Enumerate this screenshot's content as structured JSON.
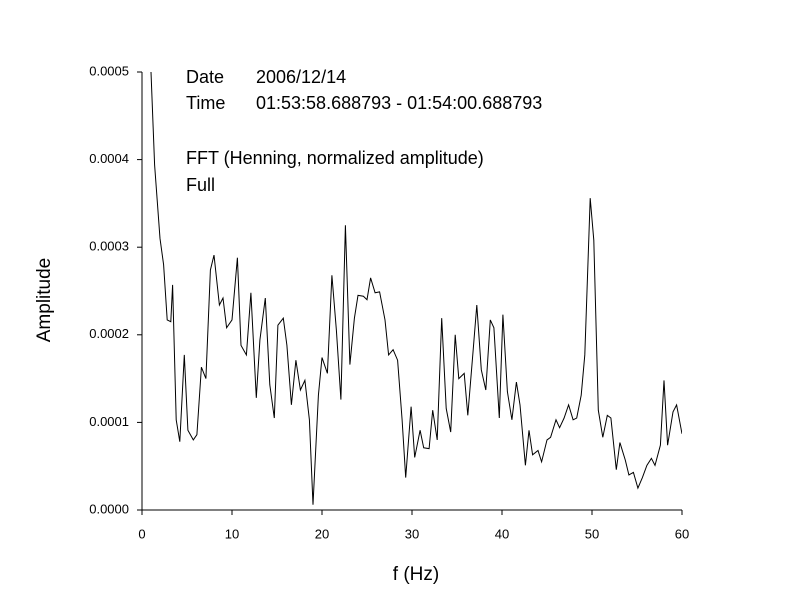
{
  "chart_data": {
    "type": "line",
    "xlabel": "f (Hz)",
    "ylabel": "Amplitude",
    "annotations": [
      "Date",
      "2006/12/14",
      "Time",
      "01:53:58.688793 - 01:54:00.688793",
      "FFT (Henning, normalized amplitude)",
      "Full"
    ],
    "xlim": [
      0,
      60
    ],
    "xticks": [
      0,
      10,
      20,
      30,
      40,
      50,
      60
    ],
    "ylim": [
      0,
      0.0005
    ],
    "yticks": [
      {
        "value": 0,
        "label": "0.0000"
      },
      {
        "value": 0.0001,
        "label": "0.0001"
      },
      {
        "value": 0.0002,
        "label": "0.0002"
      },
      {
        "value": 0.0003,
        "label": "0.0003"
      },
      {
        "value": 0.0004,
        "label": "0.0004"
      },
      {
        "value": 0.0005,
        "label": "0.0005"
      }
    ],
    "grid": false,
    "series": [
      {
        "color": "#000000",
        "x": [
          1.0,
          1.4,
          2.0,
          2.4,
          2.8,
          3.2,
          3.4,
          3.8,
          4.2,
          4.7,
          5.1,
          5.7,
          6.1,
          6.6,
          7.1,
          7.6,
          8.0,
          8.6,
          9.0,
          9.4,
          10.0,
          10.6,
          11.0,
          11.6,
          12.1,
          12.7,
          13.1,
          13.7,
          14.2,
          14.7,
          15.1,
          15.7,
          16.1,
          16.6,
          17.1,
          17.6,
          18.1,
          18.6,
          19.0,
          19.6,
          20.0,
          20.6,
          21.1,
          21.6,
          22.1,
          22.6,
          23.1,
          23.6,
          24.0,
          24.6,
          25.0,
          25.4,
          25.9,
          26.4,
          27.0,
          27.4,
          27.9,
          28.4,
          28.9,
          29.3,
          29.9,
          30.3,
          30.9,
          31.3,
          31.9,
          32.3,
          32.8,
          33.3,
          33.8,
          34.3,
          34.8,
          35.2,
          35.8,
          36.2,
          36.8,
          37.2,
          37.7,
          38.2,
          38.7,
          39.1,
          39.7,
          40.1,
          40.6,
          41.1,
          41.6,
          42.0,
          42.6,
          43.0,
          43.4,
          44.0,
          44.4,
          45.0,
          45.4,
          46.0,
          46.4,
          46.9,
          47.4,
          47.9,
          48.3,
          48.8,
          49.2,
          49.8,
          50.2,
          50.7,
          51.2,
          51.7,
          52.1,
          52.7,
          53.1,
          53.7,
          54.1,
          54.6,
          55.1,
          55.6,
          56.1,
          56.6,
          57.0,
          57.6,
          58.0,
          58.4,
          59.0,
          59.4,
          60.0
        ],
        "values": [
          0.0005,
          0.000394,
          0.00031,
          0.00028,
          0.000217,
          0.000215,
          0.000257,
          0.000103,
          7.8e-05,
          0.000177,
          9.1e-05,
          8e-05,
          8.6e-05,
          0.000163,
          0.00015,
          0.000274,
          0.000291,
          0.000234,
          0.000242,
          0.000208,
          0.000217,
          0.000288,
          0.000188,
          0.000177,
          0.000248,
          0.000128,
          0.000194,
          0.000242,
          0.000143,
          0.000105,
          0.000211,
          0.000219,
          0.000188,
          0.00012,
          0.000171,
          0.000137,
          0.000148,
          0.000103,
          6e-06,
          0.000131,
          0.000174,
          0.000156,
          0.000268,
          0.000205,
          0.000126,
          0.000325,
          0.000166,
          0.000219,
          0.000245,
          0.000244,
          0.00024,
          0.000265,
          0.000248,
          0.000249,
          0.000217,
          0.000177,
          0.000183,
          0.000171,
          0.000103,
          3.7e-05,
          0.000118,
          6e-05,
          9.1e-05,
          7.1e-05,
          7e-05,
          0.000114,
          8e-05,
          0.000219,
          0.000116,
          8.9e-05,
          0.0002,
          0.00015,
          0.000156,
          0.000108,
          0.000183,
          0.000234,
          0.00016,
          0.000137,
          0.000217,
          0.000208,
          0.000105,
          0.000223,
          0.000135,
          0.000103,
          0.000146,
          0.00012,
          5.1e-05,
          9.1e-05,
          6.3e-05,
          6.8e-05,
          5.5e-05,
          8e-05,
          8.3e-05,
          0.000103,
          9.4e-05,
          0.000105,
          0.00012,
          0.000103,
          0.000105,
          0.000131,
          0.000177,
          0.000356,
          0.000308,
          0.000114,
          8.3e-05,
          0.000108,
          0.000105,
          4.6e-05,
          7.7e-05,
          5.7e-05,
          4e-05,
          4.3e-05,
          2.5e-05,
          3.7e-05,
          5.1e-05,
          5.9e-05,
          5.1e-05,
          7.4e-05,
          0.000148,
          7.4e-05,
          0.000112,
          0.00012,
          8.7e-05
        ]
      }
    ]
  }
}
